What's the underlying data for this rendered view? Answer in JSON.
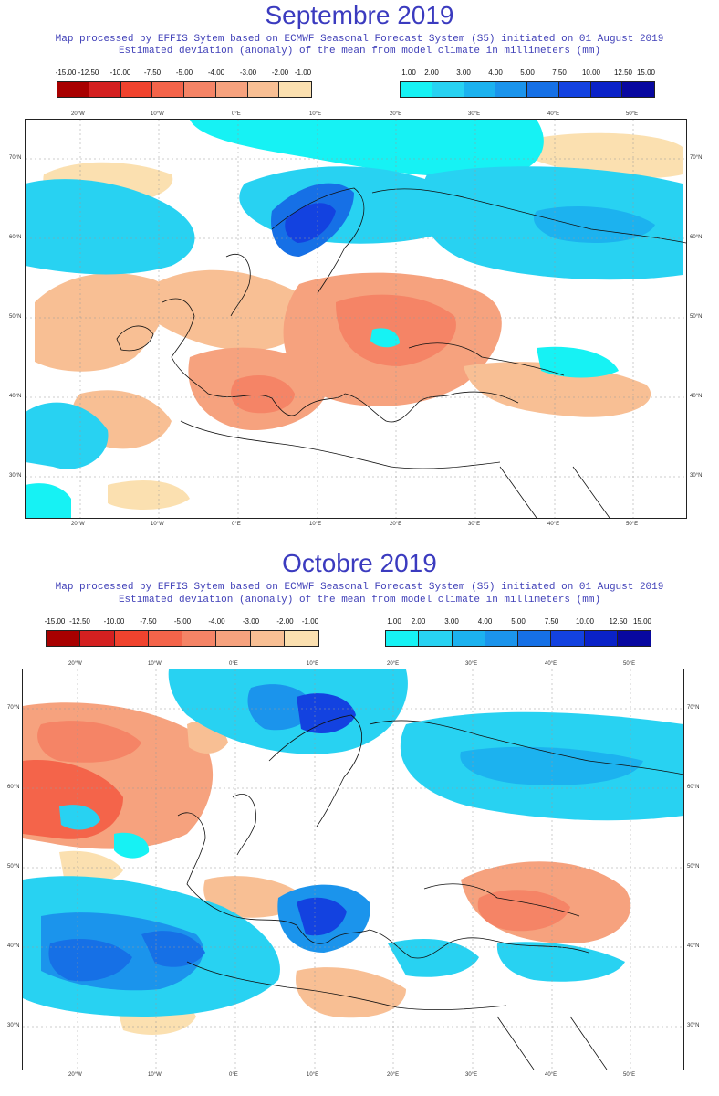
{
  "colors": {
    "title_blue": "#3b3bbf",
    "dry": [
      "#a80000",
      "#d42020",
      "#f0432e",
      "#f4644a",
      "#f58466",
      "#f6a27e",
      "#f8bf94",
      "#fbe0b0"
    ],
    "wet": [
      "#16f2f4",
      "#28d2f2",
      "#1cb2ef",
      "#1b94ec",
      "#1670e6",
      "#1342e0",
      "#0a22c8",
      "#0808a0"
    ],
    "coast": "#111111"
  },
  "colorbar": {
    "dry_labels": [
      "-15.00",
      "-12.50",
      "-10.00",
      "-7.50",
      "-5.00",
      "-4.00",
      "-3.00",
      "-2.00",
      "-1.00"
    ],
    "wet_labels": [
      "1.00",
      "2.00",
      "3.00",
      "4.00",
      "5.00",
      "7.50",
      "10.00",
      "12.50",
      "15.00"
    ]
  },
  "panels": [
    {
      "title": "Septembre 2019",
      "subtitle_1": "Map processed by EFFIS Sytem based on ECMWF Seasonal Forecast System (S5) initiated on 01 August 2019",
      "subtitle_2": "Estimated deviation (anomaly) of the mean from model climate in millimeters (mm)",
      "lon_labels": [
        "20°W",
        "10°W",
        "0°E",
        "10°E",
        "20°E",
        "30°E",
        "40°E",
        "50°E"
      ],
      "lat_labels": [
        "70°N",
        "60°N",
        "50°N",
        "40°N",
        "30°N"
      ]
    },
    {
      "title": "Octobre 2019",
      "subtitle_1": "Map processed by EFFIS Sytem based on ECMWF Seasonal Forecast System (S5) initiated on 01 August 2019",
      "subtitle_2": "Estimated deviation (anomaly) of the mean from model climate in millimeters (mm)",
      "lon_labels": [
        "20°W",
        "10°W",
        "0°E",
        "10°E",
        "20°E",
        "30°E",
        "40°E",
        "50°E"
      ],
      "lat_labels": [
        "70°N",
        "60°N",
        "50°N",
        "40°N",
        "30°N"
      ]
    }
  ]
}
